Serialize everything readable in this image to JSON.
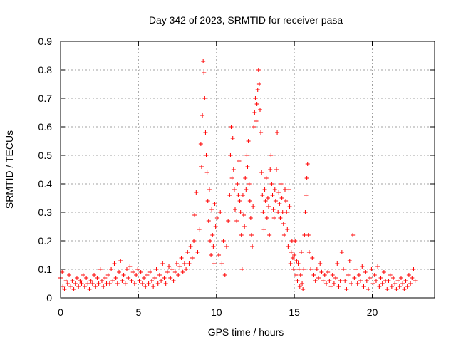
{
  "chart_data": {
    "type": "scatter",
    "title": "Day 342 of 2023, SRMTID for receiver pasa",
    "xlabel": "GPS time / hours",
    "ylabel": "SRMTID / TECUs",
    "xlim": [
      0,
      24
    ],
    "ylim": [
      0,
      0.9
    ],
    "xticks": [
      0,
      5,
      10,
      15,
      20
    ],
    "yticks": [
      0,
      0.1,
      0.2,
      0.3,
      0.4,
      0.5,
      0.6,
      0.7,
      0.8,
      0.9
    ],
    "xtick_labels": [
      "0",
      "5",
      "10",
      "15",
      "20"
    ],
    "ytick_labels": [
      "0",
      "0.1",
      "0.2",
      "0.3",
      "0.4",
      "0.5",
      "0.6",
      "0.7",
      "0.8",
      "0.9"
    ],
    "grid": true,
    "marker": "+",
    "series": [
      {
        "name": "SRMTID",
        "color": "#ff0000",
        "points": [
          [
            0.0,
            0.07
          ],
          [
            0.1,
            0.09
          ],
          [
            0.15,
            0.04
          ],
          [
            0.25,
            0.03
          ],
          [
            0.35,
            0.06
          ],
          [
            0.45,
            0.05
          ],
          [
            0.55,
            0.08
          ],
          [
            0.65,
            0.04
          ],
          [
            0.75,
            0.06
          ],
          [
            0.85,
            0.03
          ],
          [
            0.95,
            0.05
          ],
          [
            1.05,
            0.07
          ],
          [
            1.15,
            0.04
          ],
          [
            1.25,
            0.06
          ],
          [
            1.35,
            0.05
          ],
          [
            1.45,
            0.08
          ],
          [
            1.55,
            0.04
          ],
          [
            1.65,
            0.07
          ],
          [
            1.75,
            0.05
          ],
          [
            1.85,
            0.03
          ],
          [
            1.95,
            0.06
          ],
          [
            2.05,
            0.05
          ],
          [
            2.15,
            0.08
          ],
          [
            2.25,
            0.04
          ],
          [
            2.35,
            0.07
          ],
          [
            2.45,
            0.05
          ],
          [
            2.55,
            0.1
          ],
          [
            2.65,
            0.06
          ],
          [
            2.75,
            0.04
          ],
          [
            2.85,
            0.07
          ],
          [
            2.95,
            0.05
          ],
          [
            3.05,
            0.08
          ],
          [
            3.15,
            0.05
          ],
          [
            3.25,
            0.1
          ],
          [
            3.35,
            0.06
          ],
          [
            3.45,
            0.12
          ],
          [
            3.55,
            0.07
          ],
          [
            3.65,
            0.05
          ],
          [
            3.75,
            0.09
          ],
          [
            3.85,
            0.13
          ],
          [
            3.95,
            0.06
          ],
          [
            4.05,
            0.08
          ],
          [
            4.15,
            0.05
          ],
          [
            4.25,
            0.1
          ],
          [
            4.35,
            0.07
          ],
          [
            4.45,
            0.11
          ],
          [
            4.55,
            0.06
          ],
          [
            4.65,
            0.09
          ],
          [
            4.75,
            0.05
          ],
          [
            4.85,
            0.08
          ],
          [
            4.95,
            0.1
          ],
          [
            5.05,
            0.06
          ],
          [
            5.15,
            0.09
          ],
          [
            5.25,
            0.05
          ],
          [
            5.35,
            0.07
          ],
          [
            5.45,
            0.04
          ],
          [
            5.55,
            0.08
          ],
          [
            5.65,
            0.05
          ],
          [
            5.75,
            0.09
          ],
          [
            5.85,
            0.06
          ],
          [
            5.95,
            0.04
          ],
          [
            6.05,
            0.07
          ],
          [
            6.15,
            0.1
          ],
          [
            6.25,
            0.05
          ],
          [
            6.35,
            0.08
          ],
          [
            6.45,
            0.06
          ],
          [
            6.55,
            0.12
          ],
          [
            6.65,
            0.07
          ],
          [
            6.75,
            0.05
          ],
          [
            6.85,
            0.09
          ],
          [
            6.95,
            0.11
          ],
          [
            7.05,
            0.07
          ],
          [
            7.15,
            0.1
          ],
          [
            7.25,
            0.06
          ],
          [
            7.35,
            0.09
          ],
          [
            7.45,
            0.12
          ],
          [
            7.55,
            0.08
          ],
          [
            7.65,
            0.11
          ],
          [
            7.75,
            0.14
          ],
          [
            7.85,
            0.09
          ],
          [
            7.95,
            0.12
          ],
          [
            8.05,
            0.1
          ],
          [
            8.15,
            0.16
          ],
          [
            8.25,
            0.12
          ],
          [
            8.35,
            0.18
          ],
          [
            8.45,
            0.14
          ],
          [
            8.55,
            0.2
          ],
          [
            8.6,
            0.29
          ],
          [
            8.7,
            0.37
          ],
          [
            8.8,
            0.16
          ],
          [
            8.9,
            0.24
          ],
          [
            9.0,
            0.54
          ],
          [
            9.05,
            0.46
          ],
          [
            9.1,
            0.64
          ],
          [
            9.15,
            0.83
          ],
          [
            9.2,
            0.79
          ],
          [
            9.25,
            0.7
          ],
          [
            9.3,
            0.58
          ],
          [
            9.35,
            0.5
          ],
          [
            9.4,
            0.44
          ],
          [
            9.45,
            0.34
          ],
          [
            9.5,
            0.27
          ],
          [
            9.55,
            0.38
          ],
          [
            9.6,
            0.2
          ],
          [
            9.65,
            0.15
          ],
          [
            9.7,
            0.31
          ],
          [
            9.75,
            0.22
          ],
          [
            9.8,
            0.18
          ],
          [
            9.85,
            0.12
          ],
          [
            9.9,
            0.33
          ],
          [
            9.95,
            0.25
          ],
          [
            10.05,
            0.28
          ],
          [
            10.15,
            0.15
          ],
          [
            10.25,
            0.3
          ],
          [
            10.35,
            0.12
          ],
          [
            10.45,
            0.2
          ],
          [
            10.55,
            0.08
          ],
          [
            10.65,
            0.18
          ],
          [
            10.75,
            0.27
          ],
          [
            10.85,
            0.36
          ],
          [
            10.9,
            0.5
          ],
          [
            10.95,
            0.6
          ],
          [
            11.0,
            0.42
          ],
          [
            11.05,
            0.56
          ],
          [
            11.1,
            0.45
          ],
          [
            11.15,
            0.38
          ],
          [
            11.2,
            0.31
          ],
          [
            11.3,
            0.27
          ],
          [
            11.35,
            0.4
          ],
          [
            11.4,
            0.36
          ],
          [
            11.45,
            0.48
          ],
          [
            11.5,
            0.34
          ],
          [
            11.55,
            0.3
          ],
          [
            11.6,
            0.22
          ],
          [
            11.65,
            0.1
          ],
          [
            11.7,
            0.36
          ],
          [
            11.75,
            0.29
          ],
          [
            11.8,
            0.25
          ],
          [
            11.85,
            0.42
          ],
          [
            11.9,
            0.38
          ],
          [
            11.95,
            0.5
          ],
          [
            12.0,
            0.46
          ],
          [
            12.05,
            0.55
          ],
          [
            12.1,
            0.4
          ],
          [
            12.15,
            0.34
          ],
          [
            12.2,
            0.28
          ],
          [
            12.25,
            0.22
          ],
          [
            12.3,
            0.18
          ],
          [
            12.35,
            0.32
          ],
          [
            12.4,
            0.6
          ],
          [
            12.45,
            0.65
          ],
          [
            12.5,
            0.7
          ],
          [
            12.55,
            0.62
          ],
          [
            12.6,
            0.68
          ],
          [
            12.65,
            0.73
          ],
          [
            12.7,
            0.8
          ],
          [
            12.75,
            0.75
          ],
          [
            12.8,
            0.66
          ],
          [
            12.85,
            0.58
          ],
          [
            12.9,
            0.44
          ],
          [
            12.95,
            0.36
          ],
          [
            13.0,
            0.3
          ],
          [
            13.05,
            0.24
          ],
          [
            13.1,
            0.38
          ],
          [
            13.15,
            0.34
          ],
          [
            13.2,
            0.42
          ],
          [
            13.25,
            0.28
          ],
          [
            13.3,
            0.35
          ],
          [
            13.35,
            0.32
          ],
          [
            13.4,
            0.22
          ],
          [
            13.45,
            0.45
          ],
          [
            13.5,
            0.5
          ],
          [
            13.55,
            0.4
          ],
          [
            13.6,
            0.36
          ],
          [
            13.65,
            0.31
          ],
          [
            13.7,
            0.28
          ],
          [
            13.75,
            0.38
          ],
          [
            13.8,
            0.34
          ],
          [
            13.85,
            0.45
          ],
          [
            13.9,
            0.58
          ],
          [
            13.95,
            0.3
          ],
          [
            14.0,
            0.37
          ],
          [
            14.05,
            0.33
          ],
          [
            14.1,
            0.28
          ],
          [
            14.15,
            0.4
          ],
          [
            14.2,
            0.35
          ],
          [
            14.25,
            0.3
          ],
          [
            14.3,
            0.26
          ],
          [
            14.35,
            0.22
          ],
          [
            14.4,
            0.38
          ],
          [
            14.45,
            0.34
          ],
          [
            14.5,
            0.3
          ],
          [
            14.55,
            0.24
          ],
          [
            14.6,
            0.18
          ],
          [
            14.65,
            0.38
          ],
          [
            14.7,
            0.32
          ],
          [
            14.75,
            0.12
          ],
          [
            14.8,
            0.16
          ],
          [
            14.85,
            0.2
          ],
          [
            14.9,
            0.14
          ],
          [
            14.95,
            0.1
          ],
          [
            15.0,
            0.15
          ],
          [
            15.05,
            0.2
          ],
          [
            15.1,
            0.08
          ],
          [
            15.15,
            0.13
          ],
          [
            15.2,
            0.06
          ],
          [
            15.25,
            0.12
          ],
          [
            15.3,
            0.1
          ],
          [
            15.35,
            0.04
          ],
          [
            15.4,
            0.08
          ],
          [
            15.45,
            0.16
          ],
          [
            15.5,
            0.05
          ],
          [
            15.55,
            0.03
          ],
          [
            15.6,
            0.1
          ],
          [
            15.65,
            0.22
          ],
          [
            15.7,
            0.3
          ],
          [
            15.75,
            0.36
          ],
          [
            15.8,
            0.42
          ],
          [
            15.85,
            0.47
          ],
          [
            15.9,
            0.22
          ],
          [
            15.95,
            0.16
          ],
          [
            16.05,
            0.1
          ],
          [
            16.15,
            0.14
          ],
          [
            16.25,
            0.08
          ],
          [
            16.35,
            0.06
          ],
          [
            16.45,
            0.1
          ],
          [
            16.55,
            0.07
          ],
          [
            16.65,
            0.12
          ],
          [
            16.75,
            0.09
          ],
          [
            16.85,
            0.06
          ],
          [
            16.95,
            0.08
          ],
          [
            17.05,
            0.05
          ],
          [
            17.15,
            0.09
          ],
          [
            17.25,
            0.06
          ],
          [
            17.35,
            0.04
          ],
          [
            17.45,
            0.08
          ],
          [
            17.55,
            0.05
          ],
          [
            17.65,
            0.07
          ],
          [
            17.75,
            0.12
          ],
          [
            17.85,
            0.04
          ],
          [
            17.95,
            0.06
          ],
          [
            18.05,
            0.16
          ],
          [
            18.15,
            0.1
          ],
          [
            18.25,
            0.06
          ],
          [
            18.35,
            0.03
          ],
          [
            18.45,
            0.08
          ],
          [
            18.55,
            0.13
          ],
          [
            18.65,
            0.05
          ],
          [
            18.75,
            0.22
          ],
          [
            18.85,
            0.07
          ],
          [
            18.95,
            0.1
          ],
          [
            19.05,
            0.05
          ],
          [
            19.15,
            0.08
          ],
          [
            19.25,
            0.06
          ],
          [
            19.35,
            0.11
          ],
          [
            19.45,
            0.04
          ],
          [
            19.55,
            0.09
          ],
          [
            19.65,
            0.06
          ],
          [
            19.75,
            0.03
          ],
          [
            19.85,
            0.07
          ],
          [
            19.95,
            0.1
          ],
          [
            20.05,
            0.05
          ],
          [
            20.15,
            0.08
          ],
          [
            20.25,
            0.06
          ],
          [
            20.35,
            0.11
          ],
          [
            20.45,
            0.04
          ],
          [
            20.55,
            0.07
          ],
          [
            20.65,
            0.05
          ],
          [
            20.75,
            0.09
          ],
          [
            20.85,
            0.06
          ],
          [
            20.95,
            0.03
          ],
          [
            21.05,
            0.06
          ],
          [
            21.15,
            0.08
          ],
          [
            21.25,
            0.04
          ],
          [
            21.35,
            0.07
          ],
          [
            21.45,
            0.05
          ],
          [
            21.55,
            0.03
          ],
          [
            21.65,
            0.06
          ],
          [
            21.75,
            0.04
          ],
          [
            21.85,
            0.07
          ],
          [
            21.95,
            0.05
          ],
          [
            22.05,
            0.03
          ],
          [
            22.15,
            0.06
          ],
          [
            22.25,
            0.04
          ],
          [
            22.35,
            0.08
          ],
          [
            22.45,
            0.05
          ],
          [
            22.55,
            0.07
          ],
          [
            22.65,
            0.1
          ],
          [
            22.75,
            0.06
          ]
        ]
      }
    ]
  }
}
